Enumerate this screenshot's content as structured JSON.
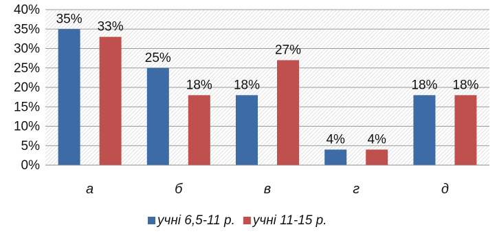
{
  "chart_data": {
    "type": "bar",
    "categories": [
      "а",
      "б",
      "в",
      "г",
      "д"
    ],
    "series": [
      {
        "name": "учні 6,5-11 р.",
        "color": "#3c6ba5",
        "values": [
          35,
          25,
          18,
          4,
          18
        ],
        "labels": [
          "35%",
          "25%",
          "18%",
          "4%",
          "18%"
        ]
      },
      {
        "name": "учні  11-15 р.",
        "color": "#c0504d",
        "values": [
          33,
          18,
          27,
          4,
          18
        ],
        "labels": [
          "33%",
          "18%",
          "27%",
          "4%",
          "18%"
        ]
      }
    ],
    "ylim": [
      0,
      40
    ],
    "yticks": [
      0,
      5,
      10,
      15,
      20,
      25,
      30,
      35,
      40
    ],
    "ytick_labels": [
      "0%",
      "5%",
      "10%",
      "15%",
      "20%",
      "25%",
      "30%",
      "35%",
      "40%"
    ],
    "grid": true,
    "legend_position": "bottom"
  }
}
